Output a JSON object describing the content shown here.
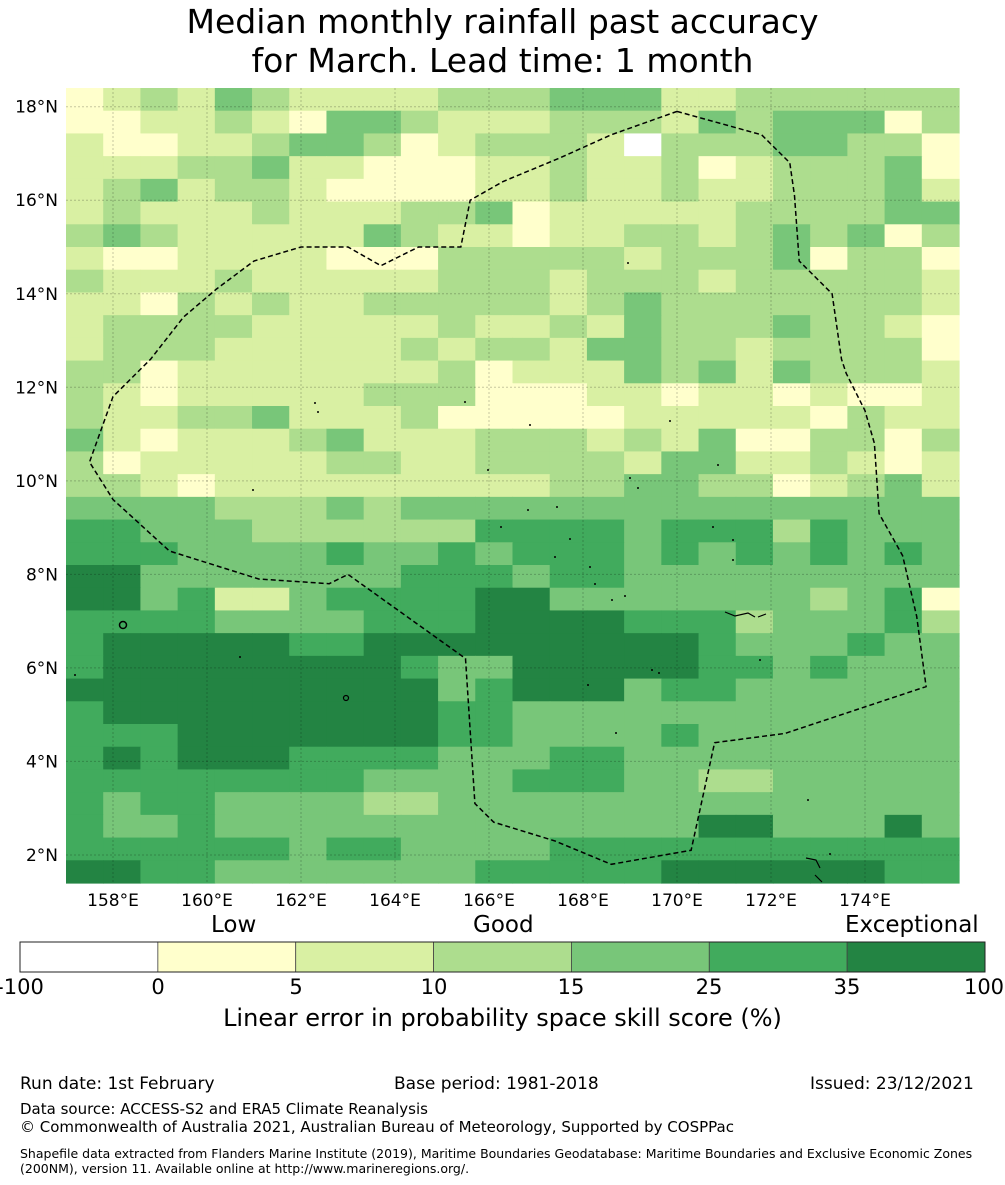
{
  "title_line1": "Median monthly rainfall past accuracy",
  "title_line2": "for March. Lead time: 1 month",
  "map": {
    "lon_range": [
      157,
      176
    ],
    "lat_range": [
      1.4,
      18.4
    ],
    "lat_ticks": [
      "18°N",
      "16°N",
      "14°N",
      "12°N",
      "10°N",
      "8°N",
      "6°N",
      "4°N",
      "2°N"
    ],
    "lat_tick_values": [
      18,
      16,
      14,
      12,
      10,
      8,
      6,
      4,
      2
    ],
    "lon_ticks": [
      "158°E",
      "160°E",
      "162°E",
      "164°E",
      "166°E",
      "168°E",
      "170°E",
      "172°E",
      "174°E"
    ],
    "lon_tick_values": [
      158,
      160,
      162,
      164,
      166,
      168,
      170,
      172,
      174
    ],
    "eez_boundary": [
      [
        170.0,
        17.9
      ],
      [
        171.8,
        17.4
      ],
      [
        172.4,
        16.8
      ],
      [
        172.5,
        16.1
      ],
      [
        172.6,
        14.7
      ],
      [
        173.3,
        14.0
      ],
      [
        173.5,
        12.6
      ],
      [
        173.6,
        12.3
      ],
      [
        174.0,
        11.5
      ],
      [
        174.2,
        10.8
      ],
      [
        174.3,
        9.3
      ],
      [
        174.8,
        8.4
      ],
      [
        175.1,
        7.1
      ],
      [
        175.3,
        5.6
      ],
      [
        173.8,
        5.1
      ],
      [
        172.3,
        4.6
      ],
      [
        170.8,
        4.4
      ],
      [
        170.3,
        2.1
      ],
      [
        168.6,
        1.8
      ],
      [
        167.4,
        2.3
      ],
      [
        166.1,
        2.7
      ],
      [
        165.7,
        3.1
      ],
      [
        165.5,
        6.2
      ],
      [
        163.0,
        8.0
      ],
      [
        162.6,
        7.8
      ],
      [
        161.1,
        7.9
      ],
      [
        159.2,
        8.5
      ],
      [
        158.0,
        9.6
      ],
      [
        157.5,
        10.4
      ],
      [
        158.0,
        11.8
      ],
      [
        158.8,
        12.6
      ],
      [
        159.5,
        13.5
      ],
      [
        160.2,
        14.1
      ],
      [
        161.0,
        14.7
      ],
      [
        162.0,
        15.0
      ],
      [
        163.0,
        15.0
      ],
      [
        163.7,
        14.6
      ],
      [
        164.5,
        15.0
      ],
      [
        165.4,
        15.0
      ],
      [
        165.6,
        16.0
      ],
      [
        166.3,
        16.4
      ],
      [
        167.5,
        16.9
      ],
      [
        168.6,
        17.4
      ],
      [
        170.0,
        17.9
      ]
    ],
    "grid_colors": [
      "#ffffff",
      "#ffffcc",
      "#d9f0a3",
      "#addd8e",
      "#78c679",
      "#41ab5d",
      "#238443"
    ],
    "grid_rows": [
      "123243222233344422333333",
      "112232144322233324344413",
      "211223443123332033344331",
      "222334221112232231233341",
      "234233211112232232233342",
      "232223222334122222333344",
      "343222224322122332343413",
      "211222211133333233341331",
      "322232222233323332333332",
      "221323223333323433333332",
      "233332222232232433343321",
      "233322222323324433233331",
      "331222222231222434243332",
      "321222223331112212212112",
      "322334222311111222221322",
      "421222342223332324113313",
      "312222233223333244223212",
      "332122222222233443312342",
      "444433343444444444444444",
      "554443333335555455535444",
      "555444454454555454545454",
      "664444444555455444444444",
      "664522455556644444443451",
      "555544445556666555344453",
      "566666556666666665444544",
      "566666666544666665545444",
      "666666666645666455444444",
      "566666666655444444444444",
      "555666666655444454444444",
      "565666555544455444444444",
      "555555554444555443344444",
      "545544443344444444444444",
      "544544444444444446644464",
      "555555455444455555555555",
      "665544444445555566666655"
    ]
  },
  "colorbar": {
    "categories": [
      "Low",
      "Good",
      "Exceptional"
    ],
    "ticks": [
      "-100",
      "0",
      "5",
      "10",
      "15",
      "25",
      "35",
      "100"
    ],
    "colors": [
      "#ffffff",
      "#ffffcc",
      "#d9f0a3",
      "#addd8e",
      "#78c679",
      "#41ab5d",
      "#238443"
    ],
    "title": "Linear error in probability space skill score (%)"
  },
  "footer": {
    "run_date": "Run date: 1st February",
    "base_period": "Base period: 1981-2018",
    "issued": "Issued: 23/12/2021",
    "data_source": "Data source: ACCESS-S2 and ERA5 Climate Reanalysis",
    "copyright": "© Commonwealth of Australia 2021, Australian Bureau of Meteorology, Supported by COSPPac",
    "shapefile": "Shapefile data extracted from Flanders Marine Institute (2019), Maritime Boundaries Geodatabase: Maritime Boundaries and Exclusive Economic Zones (200NM), version 11. Available online at http://www.marineregions.org/."
  }
}
